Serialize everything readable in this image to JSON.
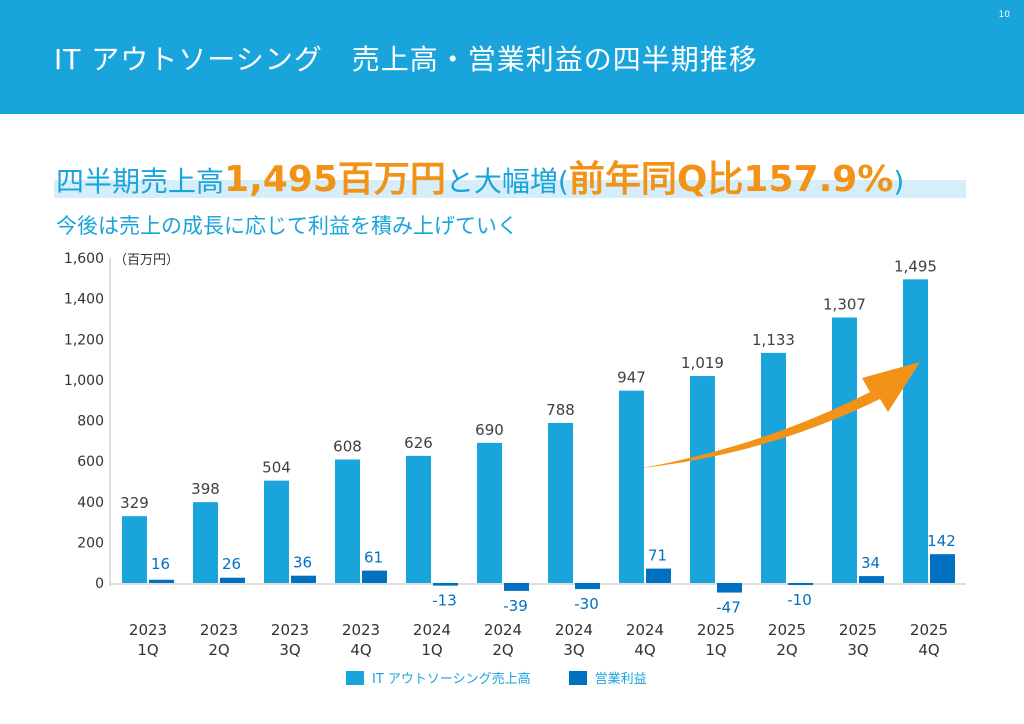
{
  "header": {
    "title": "IT アウトソーシング　売上高・営業利益の四半期推移",
    "page_number": "10"
  },
  "headline": {
    "part1": "四半期売上高",
    "part2": "1,495百万円",
    "part3": "と大幅増(",
    "part4": "前年同Q比157.9%",
    "part5": ")"
  },
  "subhead": "今後は売上の成長に応じて利益を積み上げていく",
  "colors": {
    "header_bg": "#1aa4dc",
    "sales": "#1aa4dc",
    "profit": "#0070c0",
    "accent_orange": "#f29318",
    "headline_band": "#d5eef9"
  },
  "chart_data": {
    "type": "bar",
    "unit_label": "（百万円）",
    "ylim": [
      0,
      1600
    ],
    "y_ticks": [
      "0",
      "200",
      "400",
      "600",
      "800",
      "1,000",
      "1,200",
      "1,400",
      "1,600"
    ],
    "y_tick_values": [
      0,
      200,
      400,
      600,
      800,
      1000,
      1200,
      1400,
      1600
    ],
    "categories": [
      [
        "2023",
        "1Q"
      ],
      [
        "2023",
        "2Q"
      ],
      [
        "2023",
        "3Q"
      ],
      [
        "2023",
        "4Q"
      ],
      [
        "2024",
        "1Q"
      ],
      [
        "2024",
        "2Q"
      ],
      [
        "2024",
        "3Q"
      ],
      [
        "2024",
        "4Q"
      ],
      [
        "2025",
        "1Q"
      ],
      [
        "2025",
        "2Q"
      ],
      [
        "2025",
        "3Q"
      ],
      [
        "2025",
        "4Q"
      ]
    ],
    "series": [
      {
        "name": "IT アウトソーシング売上高",
        "values": [
          329,
          398,
          504,
          608,
          626,
          690,
          788,
          947,
          1019,
          1133,
          1307,
          1495
        ],
        "labels": [
          "329",
          "398",
          "504",
          "608",
          "626",
          "690",
          "788",
          "947",
          "1,019",
          "1,133",
          "1,307",
          "1,495"
        ]
      },
      {
        "name": "営業利益",
        "values": [
          16,
          26,
          36,
          61,
          -13,
          -39,
          -30,
          71,
          -47,
          -10,
          34,
          142
        ],
        "labels": [
          "16",
          "26",
          "36",
          "61",
          "-13",
          "-39",
          "-30",
          "71",
          "-47",
          "-10",
          "34",
          "142"
        ]
      }
    ],
    "legend_position": "bottom",
    "grid": false
  }
}
